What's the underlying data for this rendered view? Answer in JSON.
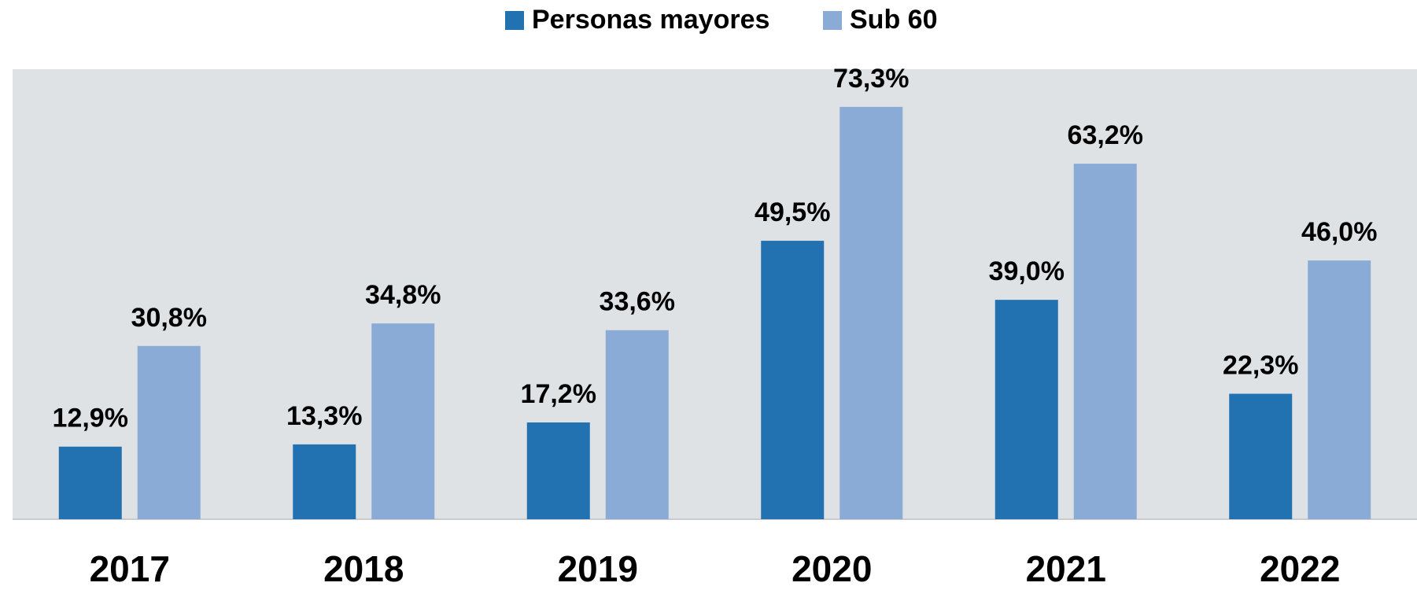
{
  "chart_data": {
    "type": "bar",
    "categories": [
      "2017",
      "2018",
      "2019",
      "2020",
      "2021",
      "2022"
    ],
    "series": [
      {
        "name": "Personas mayores",
        "color": "#2271b1",
        "values": [
          12.9,
          13.3,
          17.2,
          49.5,
          39.0,
          22.3
        ],
        "value_labels": [
          "12,9%",
          "13,3%",
          "17,2%",
          "49,5%",
          "39,0%",
          "22,3%"
        ]
      },
      {
        "name": "Sub 60",
        "color": "#8aabd6",
        "values": [
          30.8,
          34.8,
          33.6,
          73.3,
          63.2,
          46.0
        ],
        "value_labels": [
          "30,8%",
          "34,8%",
          "33,6%",
          "73,3%",
          "63,2%",
          "46,0%"
        ]
      }
    ],
    "ylim": [
      0,
      80
    ],
    "legend": "top"
  }
}
